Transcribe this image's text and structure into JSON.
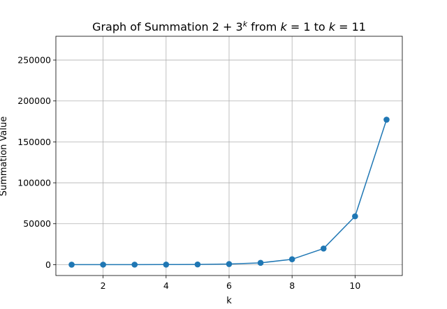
{
  "chart_data": {
    "type": "line",
    "title": {
      "prefix": "Graph of Summation ",
      "base": "2 + 3",
      "exponent": "k",
      "middle": " from ",
      "var_start": "k",
      "eq_start": " = 1 to ",
      "var_end": "k",
      "eq_end": " = 11"
    },
    "xlabel": "k",
    "ylabel": "Summation Value",
    "x": [
      1,
      2,
      3,
      4,
      5,
      6,
      7,
      8,
      9,
      10,
      11
    ],
    "series": [
      {
        "values": [
          5,
          11,
          29,
          83,
          245,
          731,
          2189,
          6563,
          19685,
          59051,
          177149
        ],
        "color": "#1f77b4"
      }
    ],
    "xlim": [
      0.5,
      11.5
    ],
    "ylim": [
      -13287,
      279027
    ],
    "xticks": [
      2,
      4,
      6,
      8,
      10
    ],
    "yticks": [
      0,
      50000,
      100000,
      150000,
      200000,
      250000
    ],
    "grid": true,
    "marker": "circle"
  }
}
